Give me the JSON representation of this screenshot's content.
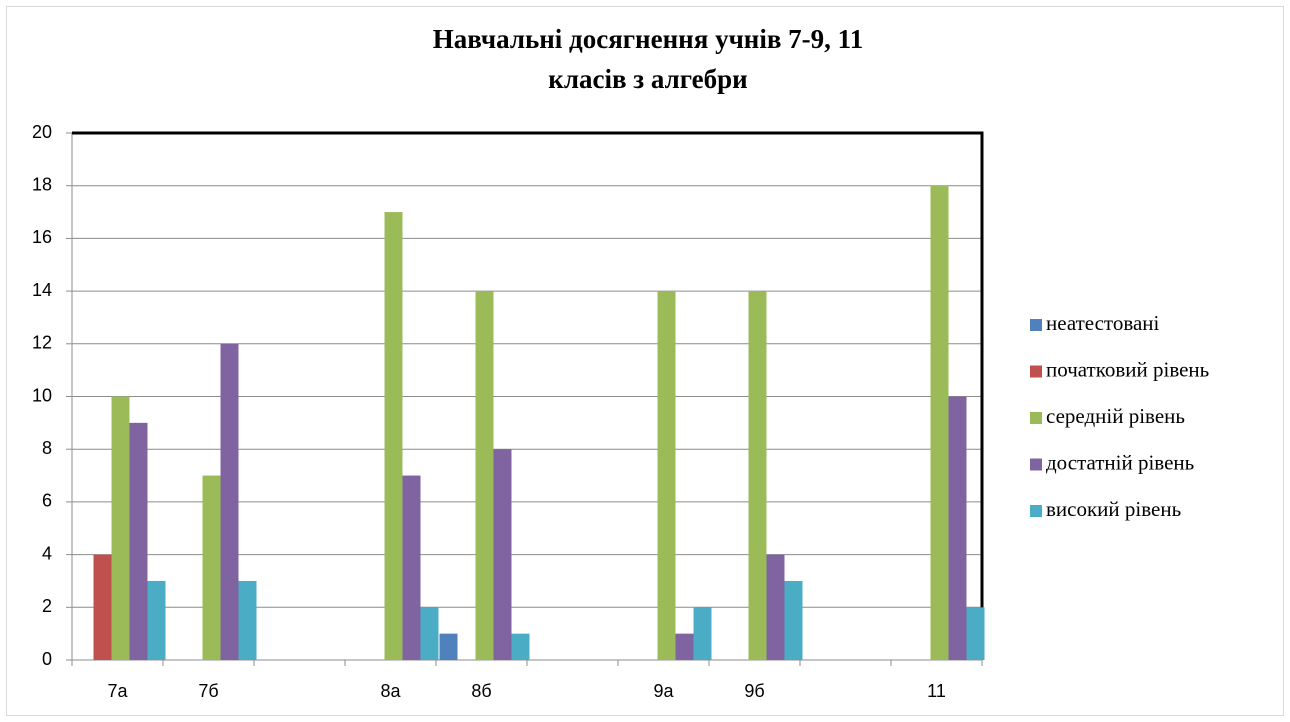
{
  "chart_data": {
    "type": "bar",
    "title_lines": [
      "Навчальні досягнення учнів 7-9, 11",
      "класів з алгебри"
    ],
    "categories": [
      "7а",
      "7б",
      null,
      "8а",
      "8б",
      null,
      "9а",
      "9б",
      null,
      "11"
    ],
    "series": [
      {
        "name": "неатестовані",
        "color": "#4f81bd",
        "values": [
          0,
          0,
          0,
          0,
          1,
          0,
          0,
          0,
          0,
          0
        ]
      },
      {
        "name": "початковий рівень",
        "color": "#c0504d",
        "values": [
          4,
          0,
          0,
          0,
          0,
          0,
          0,
          0,
          0,
          0
        ]
      },
      {
        "name": "середній рівень",
        "color": "#9bbb59",
        "values": [
          10,
          7,
          0,
          17,
          14,
          0,
          14,
          14,
          0,
          18
        ]
      },
      {
        "name": "достатній рівень",
        "color": "#8064a2",
        "values": [
          9,
          12,
          0,
          7,
          8,
          0,
          1,
          4,
          0,
          10
        ]
      },
      {
        "name": "високий рівень",
        "color": "#4bacc6",
        "values": [
          3,
          3,
          0,
          2,
          1,
          0,
          2,
          3,
          0,
          2
        ]
      }
    ],
    "ylim": [
      0,
      20
    ],
    "yticks": [
      0,
      2,
      4,
      6,
      8,
      10,
      12,
      14,
      16,
      18,
      20
    ],
    "grid": true,
    "legend": "right"
  }
}
